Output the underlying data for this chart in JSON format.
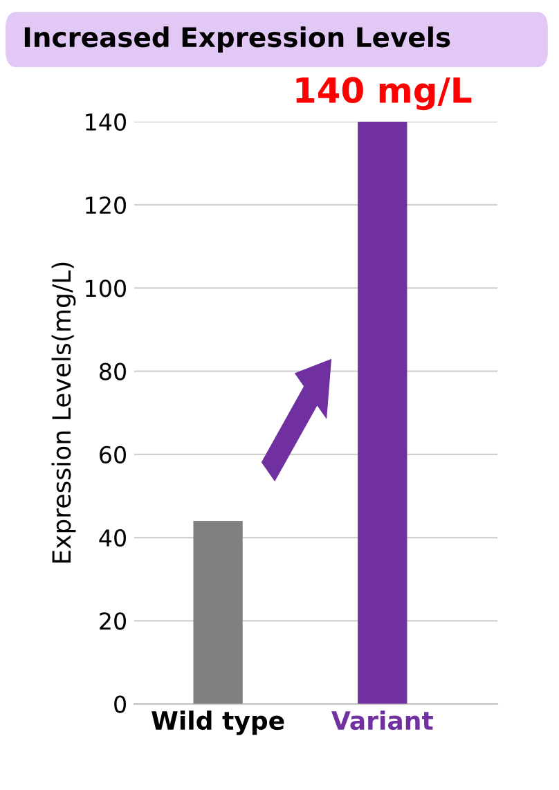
{
  "chart_data": {
    "type": "bar",
    "title": "Increased Expression Levels",
    "ylabel": "Expression Levels(mg/L)",
    "categories": [
      "Wild type",
      "Variant"
    ],
    "values": [
      44,
      140
    ],
    "colors": [
      "#808080",
      "#7030a0"
    ],
    "ylim": [
      0,
      140
    ],
    "yticks": [
      0,
      20,
      40,
      60,
      80,
      100,
      120,
      140
    ],
    "grid": "y",
    "annotations": [
      {
        "text": "140 mg/L",
        "x": "Variant",
        "y": 140
      }
    ]
  }
}
